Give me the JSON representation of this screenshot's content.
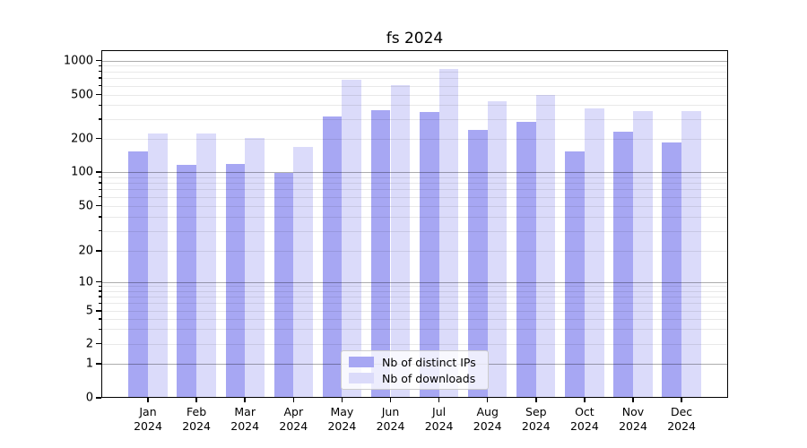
{
  "chart_data": {
    "type": "bar",
    "title": "fs 2024",
    "categories": [
      "Jan",
      "Feb",
      "Mar",
      "Apr",
      "May",
      "Jun",
      "Jul",
      "Aug",
      "Sep",
      "Oct",
      "Nov",
      "Dec"
    ],
    "category_year": "2024",
    "series": [
      {
        "name": "Nb of distinct IPs",
        "color": "#a7a7f3",
        "values": [
          153,
          115,
          118,
          99,
          315,
          359,
          344,
          238,
          282,
          153,
          232,
          184
        ]
      },
      {
        "name": "Nb of downloads",
        "color": "#dbdbfa",
        "values": [
          220,
          220,
          201,
          168,
          678,
          610,
          836,
          437,
          497,
          373,
          357,
          357
        ]
      }
    ],
    "yscale": "symlog",
    "ylim": [
      0,
      1000
    ],
    "yticks": [
      0,
      1,
      2,
      5,
      10,
      20,
      50,
      100,
      200,
      500,
      1000
    ],
    "ytick_major": [
      1,
      10,
      100,
      1000
    ],
    "grid": {
      "horizontal_major": true,
      "horizontal_minor": true,
      "drawn_above_bars": true
    },
    "legend": {
      "position": "lower center"
    }
  }
}
